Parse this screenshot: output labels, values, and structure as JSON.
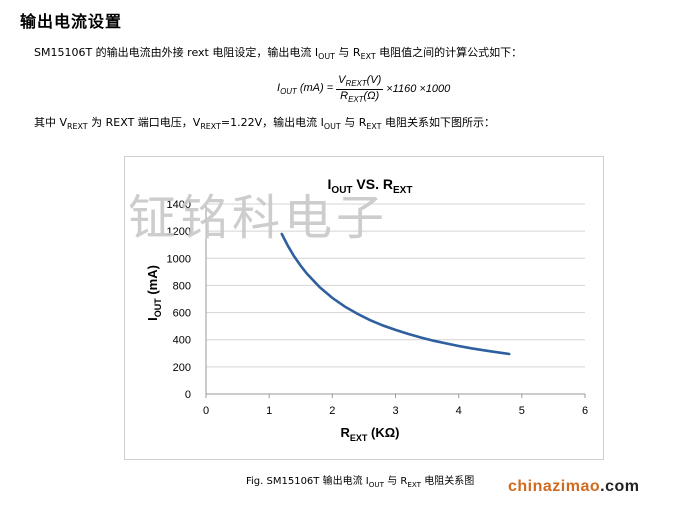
{
  "section_title": "输出电流设置",
  "intro": {
    "text_before": "SM15106T 的输出电流由外接 rext 电阻设定，输出电流 I",
    "iout_sub": "OUT",
    "text_mid": " 与 R",
    "rext_sub": "EXT",
    "text_after": " 电阻值之间的计算公式如下："
  },
  "formula": {
    "lhs_I": "I",
    "lhs_sub": "OUT",
    "lhs_unit": " (mA) =",
    "num_V": "V",
    "num_sub": "REXT",
    "num_unit": "(V)",
    "den_R": "R",
    "den_sub": "EXT",
    "den_unit": "(Ω)",
    "multiplier": "×1160 ×1000"
  },
  "line2": {
    "p1": "其中 V",
    "p1_sub": "REXT",
    "p2": " 为 REXT 端口电压，V",
    "p2_sub": "REXT",
    "p3": "=1.22V，输出电流 I",
    "p3_sub": "OUT",
    "p4": " 与 R",
    "p4_sub": "EXT",
    "p5": " 电阻关系如下图所示："
  },
  "chart_data": {
    "type": "line",
    "title_main": "I",
    "title_sub": "OUT",
    "title_mid": " VS. R",
    "title_sub2": "EXT",
    "xlabel_main": "R",
    "xlabel_sub": "EXT",
    "xlabel_unit": " (KΩ)",
    "ylabel_main": "I",
    "ylabel_sub": "OUT",
    "ylabel_unit": " (mA)",
    "xlim": [
      0,
      6
    ],
    "ylim": [
      0,
      1400
    ],
    "xticks": [
      0,
      1,
      2,
      3,
      4,
      5,
      6
    ],
    "yticks": [
      0,
      200,
      400,
      600,
      800,
      1000,
      1200,
      1400
    ],
    "grid": true,
    "line_color": "#2e5f9e",
    "series": [
      {
        "x": [
          1.2,
          1.3,
          1.4,
          1.5,
          1.6,
          1.8,
          2.0,
          2.2,
          2.4,
          2.6,
          2.8,
          3.0,
          3.2,
          3.4,
          3.6,
          3.8,
          4.0,
          4.2,
          4.4,
          4.6,
          4.8
        ],
        "y": [
          1179,
          1089,
          1011,
          944,
          885,
          787,
          708,
          643,
          590,
          544,
          505,
          472,
          443,
          416,
          393,
          373,
          354,
          337,
          322,
          308,
          295
        ]
      }
    ]
  },
  "watermark": "钲铭科电子",
  "caption": {
    "p1": "Fig. SM15106T 输出电流 I",
    "p1_sub": "OUT",
    "p2": " 与 R",
    "p2_sub": "EXT",
    "p3": " 电阻关系图"
  },
  "brand": {
    "name": "chinazimao",
    "tld": ".com",
    "color": "#d06a1e"
  }
}
